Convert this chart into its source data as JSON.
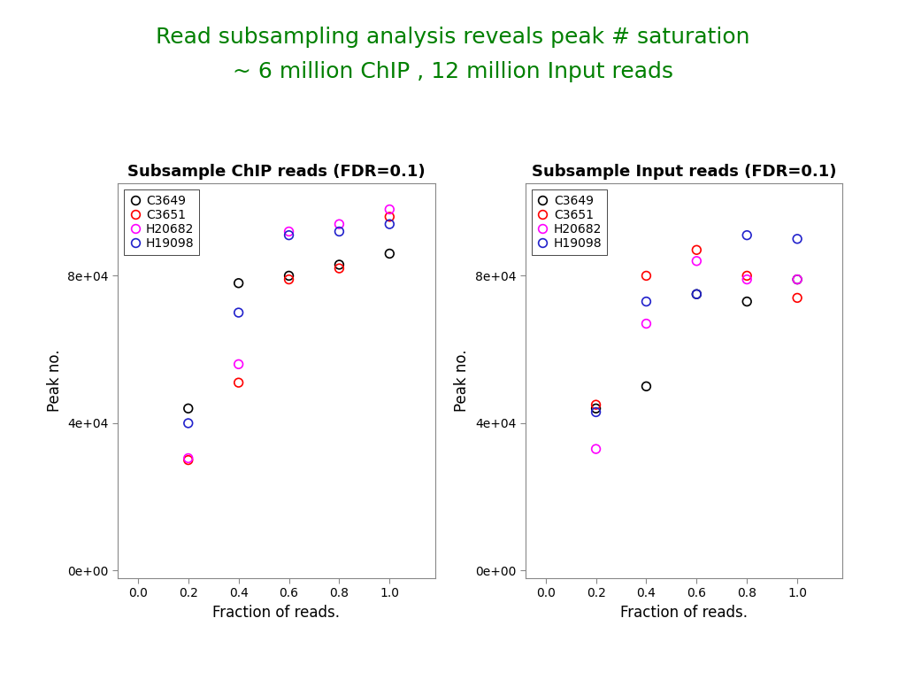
{
  "title_line1": "Read subsampling analysis reveals peak # saturation",
  "title_line2": "~ 6 million ChIP , 12 million Input reads",
  "title_color": "#008000",
  "title_fontsize": 18,
  "subplot1_title": "Subsample ChIP reads (FDR=0.1)",
  "subplot2_title": "Subsample Input reads (FDR=0.1)",
  "xlabel": "Fraction of reads.",
  "ylabel": "Peak no.",
  "legend_labels": [
    "C3649",
    "C3651",
    "H20682",
    "H19098"
  ],
  "colors": [
    "black",
    "red",
    "magenta",
    "#2222cc"
  ],
  "x_values": [
    0.2,
    0.4,
    0.6,
    0.8,
    1.0
  ],
  "chip_data": {
    "C3649": [
      44000,
      78000,
      80000,
      83000,
      86000
    ],
    "C3651": [
      30000,
      51000,
      79000,
      82000,
      96000
    ],
    "H20682": [
      30500,
      56000,
      92000,
      94000,
      98000
    ],
    "H19098": [
      40000,
      70000,
      91000,
      92000,
      94000
    ]
  },
  "input_data": {
    "C3649": [
      44000,
      50000,
      75000,
      73000,
      79000
    ],
    "C3651": [
      45000,
      80000,
      87000,
      80000,
      74000
    ],
    "H20682": [
      33000,
      67000,
      84000,
      79000,
      79000
    ],
    "H19098": [
      43000,
      73000,
      75000,
      91000,
      90000
    ]
  },
  "ylim": [
    0,
    105000
  ],
  "xlim": [
    -0.05,
    1.15
  ],
  "marker_size": 7,
  "marker_lw": 1.2,
  "background_color": "white",
  "plot_bg_color": "white",
  "subplot_title_fontsize": 13,
  "axis_label_fontsize": 12,
  "tick_fontsize": 10,
  "legend_fontsize": 10,
  "yticks": [
    0,
    40000,
    80000
  ],
  "ytick_labels": [
    "0e+00",
    "4e+04",
    "8e+04"
  ],
  "xticks": [
    0.0,
    0.2,
    0.4,
    0.6,
    0.8,
    1.0
  ],
  "xtick_labels": [
    "0.0",
    "0.2",
    "0.4",
    "0.6",
    "0.8",
    "1.0"
  ]
}
